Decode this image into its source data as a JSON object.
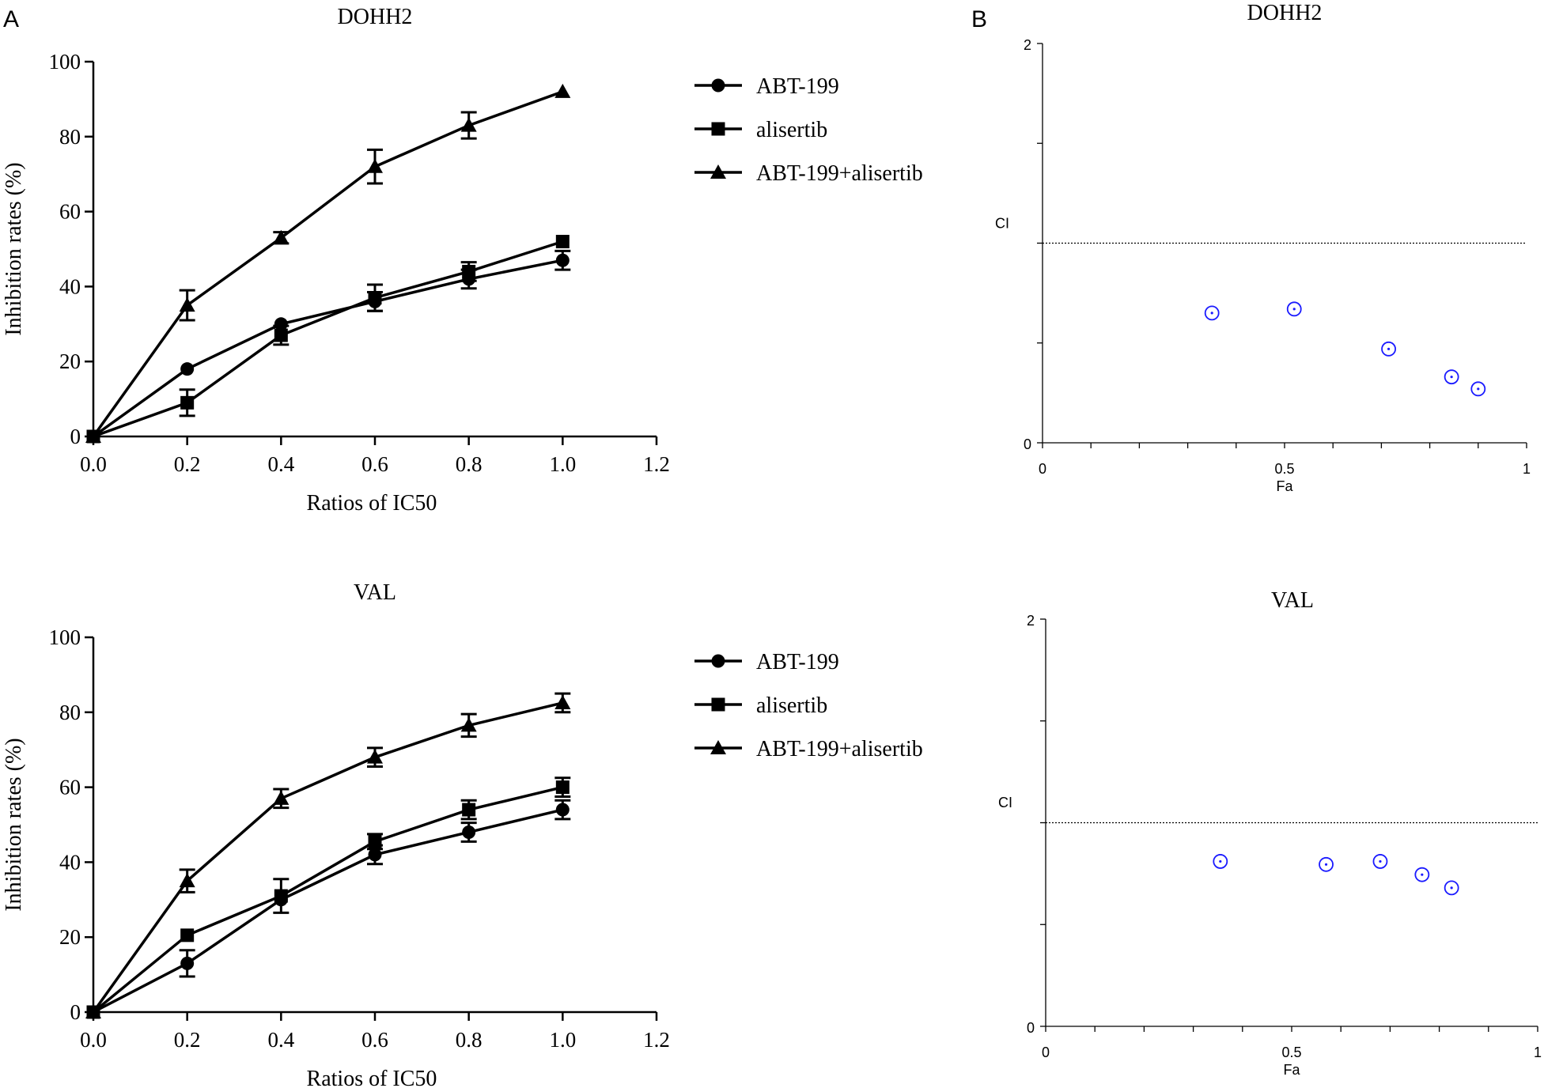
{
  "panels": {
    "a": "A",
    "b": "B"
  },
  "chart_data": [
    {
      "id": "A1",
      "type": "line",
      "title": "DOHH2",
      "xlabel": "Ratios of IC50",
      "ylabel": "Inhibition rates (%)",
      "xlim": [
        0,
        1.2
      ],
      "ylim": [
        0,
        100
      ],
      "xticks": [
        "0.0",
        "0.2",
        "0.4",
        "0.6",
        "0.8",
        "1.0",
        "1.2"
      ],
      "yticks": [
        "0",
        "20",
        "40",
        "60",
        "80",
        "100"
      ],
      "legend_position": "right",
      "x": [
        0,
        0.2,
        0.4,
        0.6,
        0.8,
        1.0
      ],
      "series": [
        {
          "name": "ABT-199",
          "marker": "circle",
          "values": [
            0,
            18,
            30,
            36,
            42,
            47
          ],
          "errors": [
            0,
            0,
            0,
            2.5,
            2.5,
            2.5
          ]
        },
        {
          "name": "alisertib",
          "marker": "square",
          "values": [
            0,
            9,
            27,
            37,
            44,
            52
          ],
          "errors": [
            0,
            3.5,
            2.5,
            3.5,
            2.5,
            0
          ]
        },
        {
          "name": "ABT-199+alisertib",
          "marker": "triangle",
          "values": [
            0,
            35,
            53,
            72,
            83,
            92
          ],
          "errors": [
            0,
            4,
            1.5,
            4.5,
            3.5,
            0
          ]
        }
      ]
    },
    {
      "id": "A2",
      "type": "line",
      "title": "VAL",
      "xlabel": "Ratios of IC50",
      "ylabel": "Inhibition rates (%)",
      "xlim": [
        0,
        1.2
      ],
      "ylim": [
        0,
        100
      ],
      "xticks": [
        "0.0",
        "0.2",
        "0.4",
        "0.6",
        "0.8",
        "1.0",
        "1.2"
      ],
      "yticks": [
        "0",
        "20",
        "40",
        "60",
        "80",
        "100"
      ],
      "legend_position": "right",
      "x": [
        0,
        0.2,
        0.4,
        0.6,
        0.8,
        1.0
      ],
      "series": [
        {
          "name": "ABT-199",
          "marker": "circle",
          "values": [
            0,
            13,
            30,
            42,
            48,
            54
          ],
          "errors": [
            0,
            3.5,
            0,
            2.5,
            2.5,
            2.5
          ]
        },
        {
          "name": "alisertib",
          "marker": "square",
          "values": [
            0,
            20.5,
            31,
            45.5,
            54,
            60
          ],
          "errors": [
            0,
            0,
            4.5,
            2,
            2.5,
            2.5
          ]
        },
        {
          "name": "ABT-199+alisertib",
          "marker": "triangle",
          "values": [
            0,
            35,
            57,
            68,
            76.5,
            82.5
          ],
          "errors": [
            0,
            3,
            2.5,
            2.5,
            3,
            2.5
          ]
        }
      ]
    },
    {
      "id": "B1",
      "type": "scatter",
      "title": "DOHH2",
      "xlabel": "Fa",
      "ylabel": "CI",
      "xlim": [
        0,
        1
      ],
      "ylim": [
        0,
        2
      ],
      "xticks": [
        "0",
        "0.5",
        "1"
      ],
      "yticks": [
        "0",
        "2"
      ],
      "reference_line": 1,
      "points": [
        {
          "x": 0.35,
          "y": 0.65
        },
        {
          "x": 0.52,
          "y": 0.67
        },
        {
          "x": 0.715,
          "y": 0.47
        },
        {
          "x": 0.845,
          "y": 0.33
        },
        {
          "x": 0.9,
          "y": 0.27
        }
      ]
    },
    {
      "id": "B2",
      "type": "scatter",
      "title": "VAL",
      "xlabel": "Fa",
      "ylabel": "CI",
      "xlim": [
        0,
        1
      ],
      "ylim": [
        0,
        2
      ],
      "xticks": [
        "0",
        "0.5",
        "1"
      ],
      "yticks": [
        "0",
        "2"
      ],
      "reference_line": 1,
      "points": [
        {
          "x": 0.355,
          "y": 0.81
        },
        {
          "x": 0.57,
          "y": 0.795
        },
        {
          "x": 0.68,
          "y": 0.81
        },
        {
          "x": 0.765,
          "y": 0.745
        },
        {
          "x": 0.825,
          "y": 0.68
        }
      ]
    }
  ],
  "colors": {
    "ink": "#000000",
    "ci_point": "#1a1aff"
  }
}
